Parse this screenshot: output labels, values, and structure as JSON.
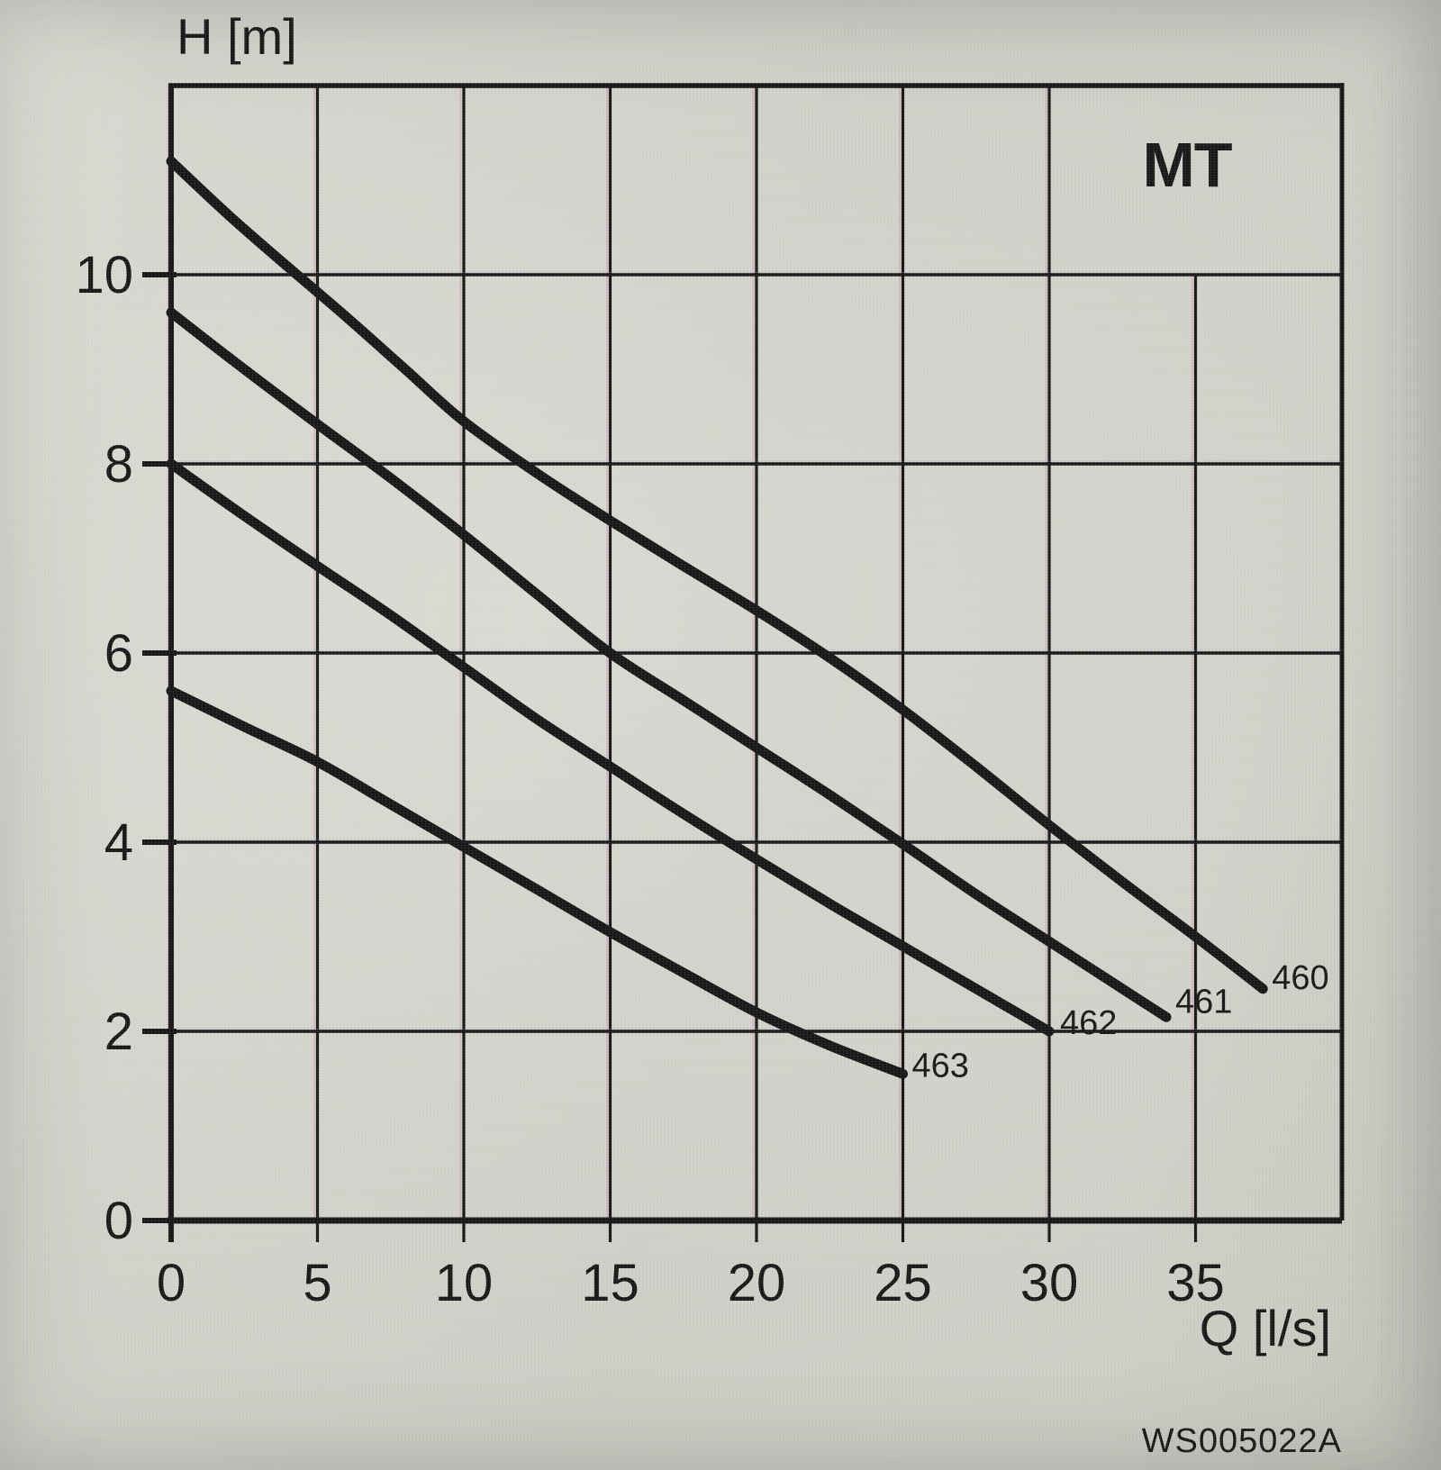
{
  "labels": {
    "y_axis": "H [m]",
    "x_axis": "Q [l/s]",
    "family": "MT",
    "doc_code": "WS005022A"
  },
  "style": {
    "line_color": "#161616",
    "background": "#d4d5cc"
  },
  "chart_data": {
    "type": "line",
    "title": "MT",
    "xlabel": "Q [l/s]",
    "ylabel": "H [m]",
    "xlim": [
      0,
      40
    ],
    "ylim": [
      0,
      12
    ],
    "grid": true,
    "x_ticks": [
      0,
      5,
      10,
      15,
      20,
      25,
      30,
      35
    ],
    "y_ticks": [
      0,
      2,
      4,
      6,
      8,
      10
    ],
    "x_gridline_top_override": {
      "35": 10
    },
    "legend_position": "labels-at-curve-ends",
    "annotation": "WS005022A",
    "series": [
      {
        "name": "460",
        "label_offset": [
          10,
          0
        ],
        "points": [
          [
            0,
            11.2
          ],
          [
            2,
            10.62
          ],
          [
            4,
            10.08
          ],
          [
            6,
            9.55
          ],
          [
            8,
            9.0
          ],
          [
            10,
            8.45
          ],
          [
            12.5,
            7.9
          ],
          [
            15,
            7.4
          ],
          [
            17.5,
            6.92
          ],
          [
            20,
            6.45
          ],
          [
            22.5,
            5.95
          ],
          [
            25,
            5.4
          ],
          [
            27.5,
            4.8
          ],
          [
            30,
            4.18
          ],
          [
            32.5,
            3.58
          ],
          [
            35,
            3.0
          ],
          [
            37.3,
            2.45
          ]
        ]
      },
      {
        "name": "461",
        "label_offset": [
          10,
          -5
        ],
        "points": [
          [
            0,
            9.6
          ],
          [
            2.5,
            9.0
          ],
          [
            5,
            8.42
          ],
          [
            7.5,
            7.85
          ],
          [
            10,
            7.25
          ],
          [
            12.5,
            6.62
          ],
          [
            15,
            6.0
          ],
          [
            17.5,
            5.5
          ],
          [
            20,
            5.0
          ],
          [
            22.5,
            4.5
          ],
          [
            25,
            3.98
          ],
          [
            27.5,
            3.45
          ],
          [
            30,
            2.95
          ],
          [
            32,
            2.55
          ],
          [
            34,
            2.15
          ]
        ]
      },
      {
        "name": "462",
        "label_offset": [
          12,
          3
        ],
        "points": [
          [
            0,
            8.0
          ],
          [
            2.5,
            7.45
          ],
          [
            5,
            6.92
          ],
          [
            7.5,
            6.4
          ],
          [
            10,
            5.85
          ],
          [
            12.5,
            5.3
          ],
          [
            15,
            4.8
          ],
          [
            17.5,
            4.3
          ],
          [
            20,
            3.82
          ],
          [
            22.5,
            3.35
          ],
          [
            25,
            2.9
          ],
          [
            27.5,
            2.45
          ],
          [
            30,
            2.0
          ]
        ]
      },
      {
        "name": "463",
        "label_offset": [
          10,
          3
        ],
        "points": [
          [
            0,
            5.6
          ],
          [
            2.5,
            5.22
          ],
          [
            5,
            4.85
          ],
          [
            7.5,
            4.4
          ],
          [
            10,
            3.95
          ],
          [
            12.5,
            3.5
          ],
          [
            15,
            3.05
          ],
          [
            17.5,
            2.62
          ],
          [
            20,
            2.2
          ],
          [
            22.5,
            1.85
          ],
          [
            25,
            1.55
          ]
        ]
      }
    ]
  }
}
